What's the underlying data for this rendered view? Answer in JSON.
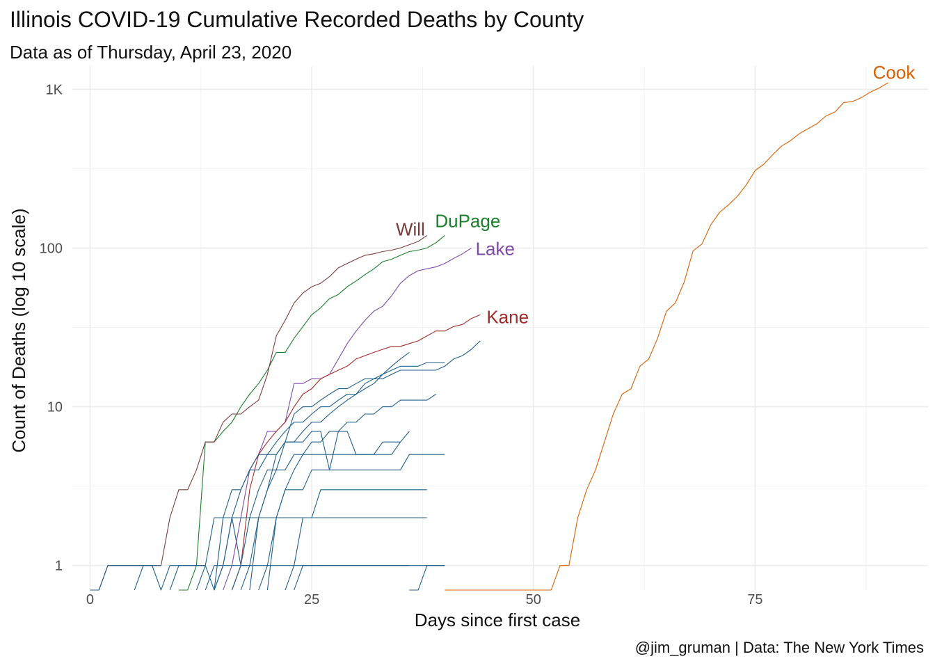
{
  "title": "Illinois COVID-19 Cumulative Recorded Deaths by County",
  "subtitle": "Data as of Thursday, April 23, 2020",
  "caption": "@jim_gruman | Data: The New York Times",
  "chart_data": {
    "type": "line",
    "xlabel": "Days since first case",
    "ylabel": "Count of Deaths (log 10 scale)",
    "y_scale": "log10",
    "xlim": [
      -2,
      94.5
    ],
    "ylim": [
      0.7,
      1400
    ],
    "x_ticks": [
      0,
      25,
      50,
      75
    ],
    "x_tick_labels": [
      "0",
      "25",
      "50",
      "75"
    ],
    "y_ticks": [
      1,
      10,
      100,
      1000
    ],
    "y_tick_labels": [
      "1",
      "10",
      "100",
      "1K"
    ],
    "grid": true,
    "legend": "none",
    "series": [
      {
        "name": "Cook",
        "color": "#D95F02",
        "x": [
          40,
          52,
          53,
          54,
          55,
          56,
          57,
          58,
          59,
          60,
          61,
          62,
          63,
          64,
          65,
          66,
          67,
          68,
          69,
          70,
          71,
          72,
          73,
          74,
          75,
          76,
          77,
          78,
          79,
          80,
          81,
          82,
          83,
          84,
          85,
          86,
          87,
          88,
          89,
          90
        ],
        "y": [
          0.7,
          0.7,
          1,
          1,
          2,
          3,
          4,
          6,
          9,
          12,
          13,
          18,
          20,
          27,
          40,
          45,
          61,
          96,
          106,
          140,
          168,
          187,
          212,
          250,
          308,
          338,
          388,
          440,
          475,
          526,
          566,
          608,
          680,
          720,
          825,
          838,
          887,
          960,
          1020,
          1100
        ]
      },
      {
        "name": "DuPage",
        "color": "#1B7F2B",
        "x": [
          10,
          11,
          12,
          13,
          14,
          15,
          16,
          17,
          18,
          19,
          20,
          21,
          22,
          23,
          24,
          25,
          26,
          27,
          28,
          29,
          30,
          31,
          32,
          33,
          34,
          35,
          36,
          37,
          38,
          39,
          40
        ],
        "y": [
          0.7,
          0.7,
          1,
          6,
          6,
          7,
          8,
          10,
          12,
          14,
          17,
          22,
          22,
          27,
          32,
          38,
          42,
          48,
          51,
          57,
          62,
          68,
          74,
          82,
          85,
          90,
          95,
          97,
          100,
          108,
          120
        ]
      },
      {
        "name": "Will",
        "color": "#7A3B3B",
        "x": [
          1,
          2,
          3,
          4,
          5,
          6,
          7,
          8,
          9,
          10,
          11,
          12,
          13,
          14,
          15,
          16,
          17,
          18,
          19,
          20,
          21,
          22,
          23,
          24,
          25,
          26,
          27,
          28,
          29,
          30,
          31,
          32,
          33,
          34,
          35,
          36,
          37,
          38
        ],
        "y": [
          0.7,
          1,
          1,
          1,
          1,
          1,
          1,
          1,
          2,
          3,
          3,
          4,
          6,
          6,
          8,
          9,
          9,
          10,
          11,
          16,
          28,
          35,
          45,
          52,
          57,
          60,
          66,
          75,
          80,
          85,
          90,
          92,
          95,
          97,
          100,
          105,
          110,
          120
        ]
      },
      {
        "name": "Lake",
        "color": "#7D4AA8",
        "x": [
          15,
          16,
          17,
          18,
          19,
          20,
          21,
          22,
          23,
          24,
          25,
          26,
          27,
          28,
          29,
          30,
          31,
          32,
          33,
          34,
          35,
          36,
          37,
          38,
          39,
          40,
          41,
          42,
          43
        ],
        "y": [
          0.7,
          1,
          2,
          4,
          5,
          7,
          7,
          8,
          14,
          14,
          15,
          15,
          16,
          20,
          25,
          30,
          35,
          40,
          43,
          50,
          60,
          67,
          72,
          74,
          76,
          80,
          86,
          92,
          100
        ]
      },
      {
        "name": "Kane",
        "color": "#A52A2A",
        "x": [
          16,
          17,
          18,
          19,
          20,
          21,
          22,
          23,
          24,
          25,
          26,
          27,
          28,
          29,
          30,
          31,
          32,
          33,
          34,
          35,
          36,
          37,
          38,
          39,
          40,
          41,
          42,
          43,
          44
        ],
        "y": [
          0.7,
          1,
          3,
          5,
          6,
          7,
          8,
          10,
          12,
          13,
          15,
          16,
          17,
          18,
          20,
          21,
          22,
          23,
          24,
          24,
          25,
          26,
          28,
          30,
          30,
          32,
          33,
          36,
          38
        ]
      },
      {
        "name": "",
        "color": "#1F5F8B",
        "x": [
          14,
          15,
          16,
          17,
          18,
          19,
          20,
          21,
          22,
          23,
          24,
          25,
          26,
          27,
          28,
          29,
          30,
          31,
          32,
          33,
          34,
          35,
          36,
          37,
          38,
          39,
          40,
          41,
          42,
          43,
          44
        ],
        "y": [
          0.7,
          1,
          2,
          3,
          4,
          5,
          5,
          6,
          7,
          8,
          8,
          9,
          10,
          10,
          11,
          12,
          12,
          14,
          15,
          15,
          16,
          17,
          17,
          17,
          17,
          17,
          18,
          20,
          21,
          23,
          26
        ]
      },
      {
        "name": "",
        "color": "#1F5F8B",
        "x": [
          17,
          18,
          19,
          20,
          21,
          22,
          23,
          24,
          25,
          26,
          27,
          28,
          29,
          30,
          31,
          32,
          33,
          34,
          35,
          36,
          37,
          38,
          39,
          40
        ],
        "y": [
          0.7,
          1,
          2,
          3,
          4,
          6,
          6,
          7,
          8,
          8,
          9,
          10,
          11,
          12,
          13,
          14,
          16,
          17,
          18,
          18,
          18,
          19,
          19,
          19
        ]
      },
      {
        "name": "",
        "color": "#1F5F8B",
        "x": [
          18,
          19,
          20,
          21,
          22,
          23,
          24,
          25,
          26,
          27,
          28,
          29,
          30,
          31,
          32,
          33,
          34,
          35,
          36
        ],
        "y": [
          0.7,
          2,
          3,
          5,
          6,
          9,
          10,
          10,
          11,
          12,
          13,
          13,
          14,
          15,
          15,
          16,
          18,
          20,
          22
        ]
      },
      {
        "name": "",
        "color": "#1F5F8B",
        "x": [
          20,
          21,
          22,
          23,
          24,
          25,
          26,
          27,
          28,
          29,
          30,
          31,
          32,
          33,
          34,
          35,
          36,
          37,
          38,
          39
        ],
        "y": [
          0.7,
          2,
          3,
          4,
          5,
          6,
          6,
          7,
          7,
          8,
          8,
          9,
          9,
          10,
          10,
          11,
          11,
          11,
          11,
          12
        ]
      },
      {
        "name": "",
        "color": "#1F5F8B",
        "x": [
          14,
          15,
          16,
          17,
          18,
          19,
          20,
          21,
          22,
          23,
          24,
          25,
          26,
          27,
          28,
          29,
          30,
          31,
          32,
          33,
          34,
          35,
          36
        ],
        "y": [
          0.7,
          2,
          3,
          3,
          4,
          4,
          5,
          5,
          6,
          6,
          6,
          7,
          7,
          4,
          7,
          7,
          5,
          5,
          5,
          6,
          6,
          6,
          7
        ]
      },
      {
        "name": "",
        "color": "#1F5F8B",
        "x": [
          16,
          17,
          18,
          19,
          20,
          21,
          22,
          23,
          24,
          25,
          26,
          27,
          28,
          29,
          30,
          31,
          32,
          33,
          34,
          35
        ],
        "y": [
          0.7,
          1,
          2,
          3,
          4,
          4,
          4,
          5,
          5,
          5,
          5,
          5,
          5,
          5,
          5,
          5,
          5,
          5,
          5,
          6
        ]
      },
      {
        "name": "",
        "color": "#1F5F8B",
        "x": [
          19,
          20,
          21,
          22,
          23,
          24,
          25,
          26,
          27,
          28,
          29,
          30,
          31,
          32,
          33,
          34,
          35,
          36,
          37,
          38,
          39,
          40
        ],
        "y": [
          0.7,
          1,
          2,
          3,
          3,
          3,
          4,
          4,
          4,
          4,
          4,
          4,
          4,
          4,
          4,
          4,
          4,
          5,
          5,
          5,
          5,
          5
        ]
      },
      {
        "name": "",
        "color": "#1F5F8B",
        "x": [
          22,
          23,
          24,
          25,
          26,
          27,
          28,
          29,
          30,
          31,
          32,
          33,
          34,
          35,
          36,
          37,
          38
        ],
        "y": [
          0.7,
          1,
          2,
          2,
          3,
          3,
          3,
          3,
          3,
          3,
          3,
          3,
          3,
          3,
          3,
          3,
          3
        ]
      },
      {
        "name": "",
        "color": "#1F5F8B",
        "x": [
          12,
          13,
          14,
          15,
          16,
          17,
          18,
          19,
          20,
          21,
          22,
          23,
          24,
          25,
          26,
          27,
          28,
          29,
          30,
          31,
          32,
          33,
          34,
          35,
          36,
          37,
          38
        ],
        "y": [
          0.7,
          1,
          2,
          2,
          2,
          2,
          2,
          2,
          2,
          2,
          2,
          2,
          2,
          2,
          2,
          2,
          2,
          2,
          2,
          2,
          2,
          2,
          2,
          2,
          2,
          2,
          2
        ]
      },
      {
        "name": "",
        "color": "#1F5F8B",
        "x": [
          23,
          24,
          25,
          26,
          27,
          28,
          29,
          30,
          31,
          32,
          33,
          34,
          35,
          36,
          37,
          38,
          39,
          40
        ],
        "y": [
          0.7,
          1,
          1,
          1,
          1,
          1,
          1,
          1,
          1,
          1,
          1,
          1,
          1,
          1,
          1,
          1,
          1,
          1
        ]
      },
      {
        "name": "",
        "color": "#1F5F8B",
        "x": [
          13,
          14,
          15,
          16,
          17,
          18,
          19,
          20,
          21,
          22,
          23,
          24,
          25,
          26,
          27,
          28,
          29,
          30,
          31,
          32,
          33,
          34,
          35,
          36
        ],
        "y": [
          0.7,
          1,
          1,
          1,
          1,
          1,
          1,
          1,
          1,
          1,
          1,
          1,
          1,
          1,
          1,
          1,
          1,
          1,
          1,
          1,
          1,
          1,
          1,
          1
        ]
      },
      {
        "name": "",
        "color": "#1F5F8B",
        "x": [
          0,
          1,
          2,
          3,
          4,
          5,
          6,
          7,
          8
        ],
        "y": [
          0.7,
          0.7,
          1,
          1,
          1,
          1,
          1,
          1,
          1
        ]
      },
      {
        "name": "",
        "color": "#1F5F8B",
        "x": [
          5,
          6,
          7,
          8,
          9,
          10,
          11,
          12,
          13
        ],
        "y": [
          0.7,
          1,
          1,
          0.7,
          1,
          1,
          1,
          1,
          1
        ]
      },
      {
        "name": "",
        "color": "#1F5F8B",
        "x": [
          9,
          10,
          11,
          12,
          13,
          14,
          15,
          16,
          17,
          18
        ],
        "y": [
          0.7,
          1,
          1,
          1,
          1,
          0.7,
          1,
          2,
          1,
          1
        ]
      },
      {
        "name": "",
        "color": "#1F5F8B",
        "x": [
          36,
          37,
          38,
          39,
          40
        ],
        "y": [
          0.7,
          0.7,
          1,
          1,
          1
        ]
      }
    ],
    "labels": [
      {
        "text": "Cook",
        "series": "Cook",
        "color": "#D95F02"
      },
      {
        "text": "DuPage",
        "series": "DuPage",
        "color": "#1B7F2B"
      },
      {
        "text": "Will",
        "series": "Will",
        "color": "#7A3B3B"
      },
      {
        "text": "Lake",
        "series": "Lake",
        "color": "#7D4AA8"
      },
      {
        "text": "Kane",
        "series": "Kane",
        "color": "#A52A2A"
      }
    ]
  }
}
